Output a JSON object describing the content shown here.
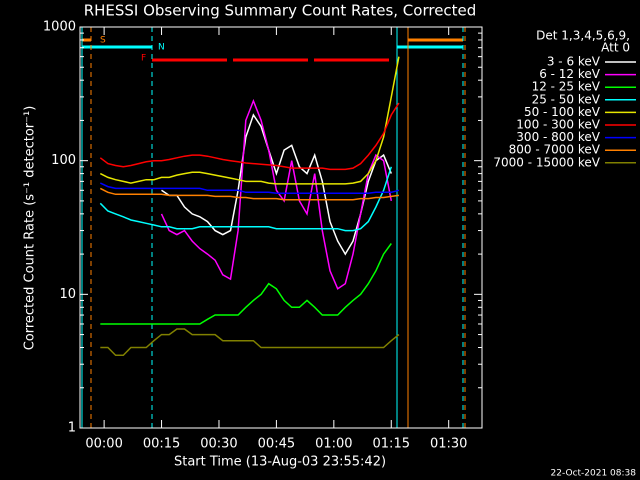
{
  "chart_data": {
    "type": "line",
    "title": "RHESSI Observing Summary Count Rates, Corrected",
    "x_label": "Start Time (13-Aug-03 23:55:42)",
    "y_label": "Corrected Count Rate (s⁻¹ detector⁻¹)",
    "legend_title": [
      "Det 1,3,4,5,6,9,",
      "Att 0"
    ],
    "footer": "22-Oct-2021 08:38",
    "flags": [
      "S",
      "N",
      "F"
    ],
    "y_scale": "log",
    "ylim": [
      1,
      1000
    ],
    "yticks": [
      1,
      10,
      100,
      1000
    ],
    "xlim": [
      -6.3,
      98.7
    ],
    "xticks": [
      {
        "value": 0,
        "label": "00:00"
      },
      {
        "value": 15,
        "label": "00:15"
      },
      {
        "value": 30,
        "label": "00:30"
      },
      {
        "value": 45,
        "label": "00:45"
      },
      {
        "value": 60,
        "label": "01:00"
      },
      {
        "value": 75,
        "label": "01:15"
      },
      {
        "value": 90,
        "label": "01:30"
      }
    ],
    "x": [
      -1,
      1,
      3,
      5,
      7,
      9,
      11,
      13,
      15,
      17,
      19,
      21,
      23,
      25,
      27,
      29,
      31,
      33,
      35,
      37,
      39,
      41,
      43,
      45,
      47,
      49,
      51,
      53,
      55,
      57,
      59,
      61,
      63,
      65,
      67,
      69,
      71,
      73,
      75,
      77
    ],
    "series": [
      {
        "name": "3 - 6 keV",
        "color": "#ffffff",
        "values": [
          null,
          null,
          null,
          null,
          null,
          null,
          null,
          null,
          60,
          55,
          55,
          45,
          40,
          38,
          35,
          30,
          28,
          30,
          60,
          150,
          220,
          180,
          120,
          80,
          120,
          130,
          90,
          80,
          110,
          70,
          35,
          25,
          20,
          25,
          40,
          70,
          100,
          110,
          80,
          null
        ]
      },
      {
        "name": "6 - 12 keV",
        "color": "#ff00ff",
        "values": [
          null,
          null,
          null,
          null,
          null,
          null,
          null,
          null,
          40,
          30,
          28,
          30,
          25,
          22,
          20,
          18,
          14,
          13,
          30,
          200,
          280,
          200,
          120,
          60,
          50,
          100,
          50,
          40,
          80,
          30,
          15,
          11,
          12,
          20,
          40,
          80,
          110,
          100,
          50,
          null
        ]
      },
      {
        "name": "12 - 25 keV",
        "color": "#00ff00",
        "values": [
          6,
          6,
          6,
          6,
          6,
          6,
          6,
          6,
          6,
          6,
          6,
          6,
          6,
          6,
          6.5,
          7,
          7,
          7,
          7,
          8,
          9,
          10,
          12,
          11,
          9,
          8,
          8,
          9,
          8,
          7,
          7,
          7,
          8,
          9,
          10,
          12,
          15,
          20,
          24,
          null
        ]
      },
      {
        "name": "25 - 50 keV",
        "color": "#00ffff",
        "values": [
          48,
          42,
          40,
          38,
          36,
          35,
          34,
          33,
          32,
          32,
          31,
          31,
          31,
          32,
          32,
          32,
          32,
          32,
          32,
          32,
          32,
          32,
          32,
          31,
          31,
          31,
          31,
          31,
          31,
          31,
          31,
          31,
          30,
          30,
          31,
          35,
          45,
          60,
          90,
          null
        ]
      },
      {
        "name": "50 - 100 keV",
        "color": "#e6e600",
        "values": [
          80,
          75,
          72,
          70,
          68,
          70,
          72,
          72,
          75,
          75,
          78,
          80,
          82,
          82,
          80,
          78,
          76,
          74,
          72,
          70,
          70,
          70,
          68,
          67,
          67,
          67,
          67,
          67,
          67,
          67,
          67,
          67,
          67,
          68,
          70,
          80,
          100,
          150,
          300,
          600
        ]
      },
      {
        "name": "100 - 300 keV",
        "color": "#ff0000",
        "values": [
          105,
          95,
          92,
          90,
          92,
          95,
          98,
          100,
          100,
          102,
          105,
          108,
          110,
          110,
          108,
          105,
          102,
          100,
          98,
          96,
          95,
          94,
          93,
          92,
          90,
          88,
          88,
          88,
          88,
          88,
          86,
          86,
          86,
          88,
          95,
          110,
          130,
          160,
          220,
          270
        ]
      },
      {
        "name": "300 - 800 keV",
        "color": "#0000ff",
        "values": [
          68,
          64,
          62,
          62,
          62,
          62,
          62,
          62,
          62,
          62,
          62,
          62,
          62,
          62,
          60,
          60,
          60,
          60,
          60,
          58,
          58,
          58,
          58,
          57,
          57,
          57,
          57,
          57,
          57,
          57,
          57,
          57,
          57,
          57,
          57,
          57,
          58,
          58,
          58,
          60
        ]
      },
      {
        "name": "800 - 7000 keV",
        "color": "#ff8000",
        "values": [
          62,
          58,
          56,
          56,
          56,
          56,
          56,
          56,
          56,
          55,
          55,
          55,
          55,
          55,
          55,
          54,
          54,
          54,
          53,
          53,
          52,
          52,
          52,
          52,
          51,
          51,
          51,
          51,
          51,
          51,
          51,
          51,
          51,
          51,
          52,
          52,
          53,
          53,
          54,
          55
        ]
      },
      {
        "name": "7000 - 15000 keV",
        "color": "#808000",
        "values": [
          4,
          4,
          3.5,
          3.5,
          4,
          4,
          4,
          4.5,
          5,
          5,
          5.5,
          5.5,
          5,
          5,
          5,
          5,
          4.5,
          4.5,
          4.5,
          4.5,
          4.5,
          4,
          4,
          4,
          4,
          4,
          4,
          4,
          4,
          4,
          4,
          4,
          4,
          4,
          4,
          4,
          4,
          4,
          4.5,
          5
        ]
      }
    ]
  }
}
